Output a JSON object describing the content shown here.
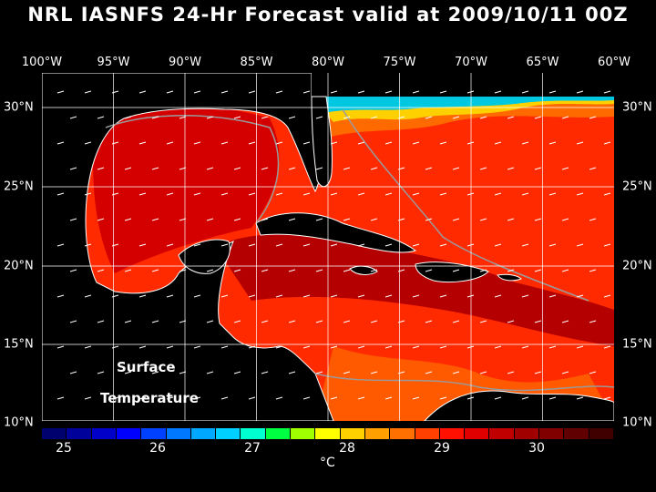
{
  "title": "NRL IASNFS  24-Hr Forecast valid at 2009/10/11 00Z",
  "longitude_labels": [
    "100°W",
    "95°W",
    "90°W",
    "85°W",
    "80°W",
    "75°W",
    "70°W",
    "65°W",
    "60°W"
  ],
  "latitude_labels": [
    "30°N",
    "25°N",
    "20°N",
    "15°N",
    "10°N"
  ],
  "overlay_label": {
    "line1": "Surface",
    "line2": "Temperature"
  },
  "colorbar": {
    "ticks": [
      "25",
      "26",
      "27",
      "28",
      "29",
      "30"
    ],
    "unit": "°C",
    "range": [
      24.5,
      31.0
    ],
    "colors": [
      "#00006e",
      "#00009a",
      "#0000c8",
      "#0000ff",
      "#0040ff",
      "#0078ff",
      "#00a8ff",
      "#00d0ff",
      "#00ffd0",
      "#00ff40",
      "#a0ff00",
      "#ffff00",
      "#ffd000",
      "#ffa000",
      "#ff7000",
      "#ff4000",
      "#ff1000",
      "#e00000",
      "#c00000",
      "#a00000",
      "#800000",
      "#600000",
      "#400000"
    ]
  },
  "map_colors": {
    "land": "#000000",
    "coast": "#ffffff",
    "grid": "#ffffff",
    "isobath": "#9a9a9a",
    "sst_warm": "#ff2000",
    "sst_hot": "#c00000",
    "sst_mild": "#ff6a00",
    "sst_cool": "#00c8e0"
  }
}
